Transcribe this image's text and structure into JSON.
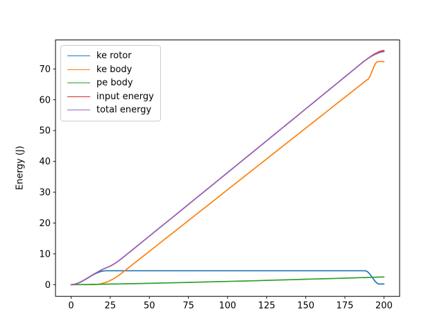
{
  "figure": {
    "background": "#ffffff"
  },
  "chart_data": {
    "type": "line",
    "title": "",
    "xlabel": "",
    "ylabel": "Energy (J)",
    "grid": false,
    "legend_position": "upper left",
    "xlim": [
      -10,
      210
    ],
    "ylim": [
      -3.8,
      79.4
    ],
    "xticks": [
      0,
      25,
      50,
      75,
      100,
      125,
      150,
      175,
      200
    ],
    "yticks": [
      0,
      10,
      20,
      30,
      40,
      50,
      60,
      70
    ],
    "x": [
      0,
      2,
      4,
      6,
      8,
      10,
      12,
      14,
      16,
      18,
      20,
      22,
      24,
      26,
      28,
      30,
      32,
      34,
      36,
      38,
      40,
      45,
      50,
      55,
      60,
      65,
      70,
      75,
      80,
      85,
      90,
      95,
      100,
      105,
      110,
      115,
      120,
      125,
      130,
      135,
      140,
      145,
      150,
      155,
      160,
      165,
      170,
      175,
      180,
      185,
      186,
      187,
      188,
      189,
      190,
      191,
      192,
      193,
      194,
      195,
      196,
      197,
      198,
      199,
      200
    ],
    "series": [
      {
        "name": "ke rotor",
        "color": "#1f77b4",
        "values": [
          0,
          0.11,
          0.39,
          0.82,
          1.35,
          1.94,
          2.56,
          3.15,
          3.68,
          4.11,
          4.4,
          4.5,
          4.5,
          4.5,
          4.5,
          4.5,
          4.5,
          4.5,
          4.5,
          4.5,
          4.5,
          4.5,
          4.5,
          4.5,
          4.5,
          4.5,
          4.5,
          4.5,
          4.5,
          4.5,
          4.5,
          4.5,
          4.5,
          4.5,
          4.5,
          4.5,
          4.5,
          4.5,
          4.5,
          4.5,
          4.5,
          4.5,
          4.5,
          4.5,
          4.5,
          4.5,
          4.5,
          4.5,
          4.5,
          4.5,
          4.5,
          4.5,
          4.5,
          4.35,
          3.96,
          3.39,
          2.71,
          1.99,
          1.32,
          0.74,
          0.35,
          0.2,
          0.2,
          0.2,
          0.2
        ]
      },
      {
        "name": "ke body",
        "color": "#ff7f0e",
        "values": [
          0,
          0,
          0,
          0,
          0,
          0,
          0,
          0,
          0.04,
          0.18,
          0.4,
          0.71,
          1.11,
          1.6,
          2.18,
          2.84,
          3.6,
          4.4,
          5.2,
          6.0,
          6.8,
          8.8,
          10.8,
          12.8,
          14.8,
          16.8,
          18.8,
          20.8,
          22.8,
          24.8,
          26.8,
          28.8,
          30.8,
          32.8,
          34.8,
          36.8,
          38.8,
          40.8,
          42.8,
          44.8,
          46.8,
          48.8,
          50.8,
          52.8,
          54.8,
          56.8,
          58.8,
          60.8,
          62.8,
          64.8,
          65.2,
          65.6,
          66.0,
          66.4,
          66.73,
          67.59,
          68.76,
          70.04,
          71.21,
          72.07,
          72.4,
          72.4,
          72.4,
          72.4,
          72.4
        ]
      },
      {
        "name": "pe body",
        "color": "#2ca02c",
        "values": [
          0,
          0.01,
          0.02,
          0.03,
          0.05,
          0.06,
          0.07,
          0.09,
          0.11,
          0.12,
          0.14,
          0.16,
          0.18,
          0.2,
          0.21,
          0.23,
          0.25,
          0.27,
          0.29,
          0.31,
          0.33,
          0.39,
          0.44,
          0.5,
          0.56,
          0.61,
          0.67,
          0.73,
          0.8,
          0.86,
          0.92,
          0.99,
          1.05,
          1.12,
          1.18,
          1.25,
          1.32,
          1.39,
          1.46,
          1.53,
          1.6,
          1.67,
          1.75,
          1.82,
          1.89,
          1.97,
          2.04,
          2.12,
          2.19,
          2.27,
          2.28,
          2.3,
          2.31,
          2.33,
          2.35,
          2.36,
          2.38,
          2.39,
          2.41,
          2.42,
          2.44,
          2.45,
          2.47,
          2.48,
          2.5
        ]
      },
      {
        "name": "input energy",
        "color": "#d62728",
        "values": [
          0,
          0.11,
          0.41,
          0.85,
          1.4,
          2.0,
          2.63,
          3.24,
          3.83,
          4.41,
          4.94,
          5.37,
          5.79,
          6.29,
          6.89,
          7.58,
          8.35,
          9.17,
          9.99,
          10.81,
          11.63,
          13.69,
          15.74,
          17.8,
          19.86,
          21.91,
          23.97,
          26.03,
          28.1,
          30.16,
          32.22,
          34.29,
          36.35,
          38.42,
          40.48,
          42.55,
          44.62,
          46.69,
          48.76,
          50.83,
          52.9,
          54.97,
          57.05,
          59.12,
          61.19,
          63.27,
          65.34,
          67.42,
          69.49,
          71.57,
          71.98,
          72.37,
          72.76,
          73.15,
          73.52,
          73.87,
          74.21,
          74.54,
          74.84,
          75.11,
          75.36,
          75.58,
          75.75,
          75.88,
          75.95
        ]
      },
      {
        "name": "total energy",
        "color": "#9467bd",
        "values": [
          0,
          0.11,
          0.41,
          0.85,
          1.4,
          2.0,
          2.63,
          3.24,
          3.83,
          4.41,
          4.94,
          5.37,
          5.79,
          6.29,
          6.89,
          7.58,
          8.35,
          9.17,
          9.99,
          10.81,
          11.63,
          13.69,
          15.74,
          17.8,
          19.86,
          21.91,
          23.97,
          26.03,
          28.1,
          30.16,
          32.22,
          34.29,
          36.35,
          38.42,
          40.48,
          42.55,
          44.62,
          46.69,
          48.76,
          50.83,
          52.9,
          54.97,
          57.05,
          59.12,
          61.19,
          63.27,
          65.34,
          67.42,
          69.49,
          71.57,
          71.98,
          72.37,
          72.75,
          73.1,
          73.45,
          73.77,
          74.08,
          74.36,
          74.62,
          74.86,
          75.08,
          75.27,
          75.42,
          75.54,
          75.6
        ]
      }
    ]
  }
}
